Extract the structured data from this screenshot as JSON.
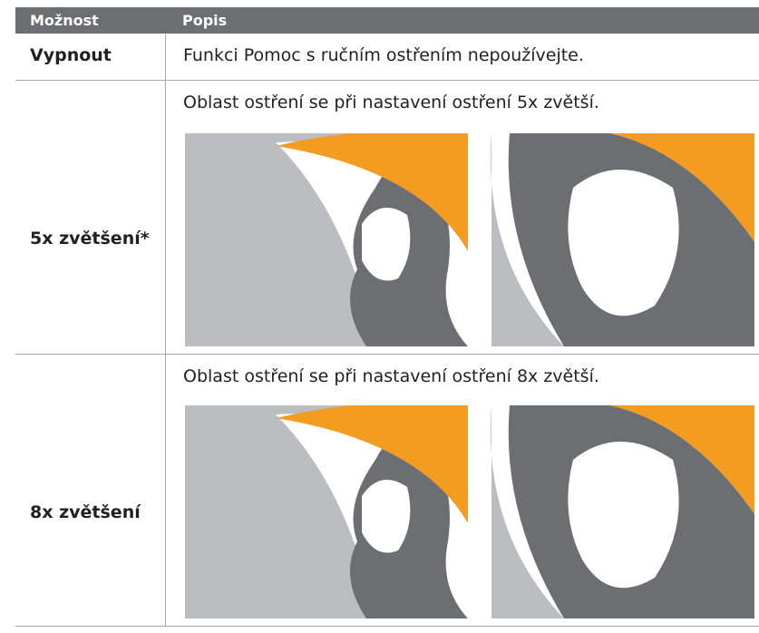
{
  "table": {
    "header": [
      "Možnost",
      "Popis"
    ],
    "rows": [
      {
        "option": "Vypnout",
        "description": "Funkci Pomoc s ručním ostřením nepoužívejte."
      },
      {
        "option": "5x zvětšení*",
        "description": "Oblast ostření se při nastavení ostření 5x zvětší."
      },
      {
        "option": "8x zvětšení",
        "description": "Oblast ostření se při nastavení ostření 8x zvětší."
      }
    ]
  }
}
